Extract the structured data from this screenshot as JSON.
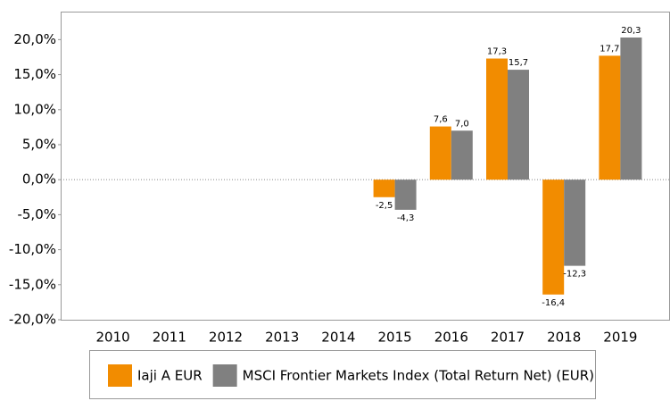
{
  "chart_data": {
    "type": "bar",
    "categories": [
      "2010",
      "2011",
      "2012",
      "2013",
      "2014",
      "2015",
      "2016",
      "2017",
      "2018",
      "2019"
    ],
    "series": [
      {
        "name": "Iaji A EUR",
        "color": "#f28c00",
        "values": [
          null,
          null,
          null,
          null,
          null,
          -2.5,
          7.6,
          17.3,
          -16.4,
          17.7
        ],
        "value_labels": [
          null,
          null,
          null,
          null,
          null,
          "-2,5",
          "7,6",
          "17,3",
          "-16,4",
          "17,7"
        ]
      },
      {
        "name": "MSCI Frontier Markets Index (Total Return Net) (EUR)",
        "color": "#808080",
        "values": [
          null,
          null,
          null,
          null,
          null,
          -4.3,
          7.0,
          15.7,
          -12.3,
          20.3
        ],
        "value_labels": [
          null,
          null,
          null,
          null,
          null,
          "-4,3",
          "7,0",
          "15,7",
          "-12,3",
          "20,3"
        ]
      }
    ],
    "ylim": [
      -20,
      24
    ],
    "yticks": [
      {
        "value": -20,
        "label": "-20,0%"
      },
      {
        "value": -15,
        "label": "-15,0%"
      },
      {
        "value": -10,
        "label": "-10,0%"
      },
      {
        "value": -5,
        "label": "-5,0%"
      },
      {
        "value": 0,
        "label": "0,0%"
      },
      {
        "value": 5,
        "label": "5,0%"
      },
      {
        "value": 10,
        "label": "10,0%"
      },
      {
        "value": 15,
        "label": "15,0%"
      },
      {
        "value": 20,
        "label": "20,0%"
      }
    ],
    "legend": "bottom"
  }
}
